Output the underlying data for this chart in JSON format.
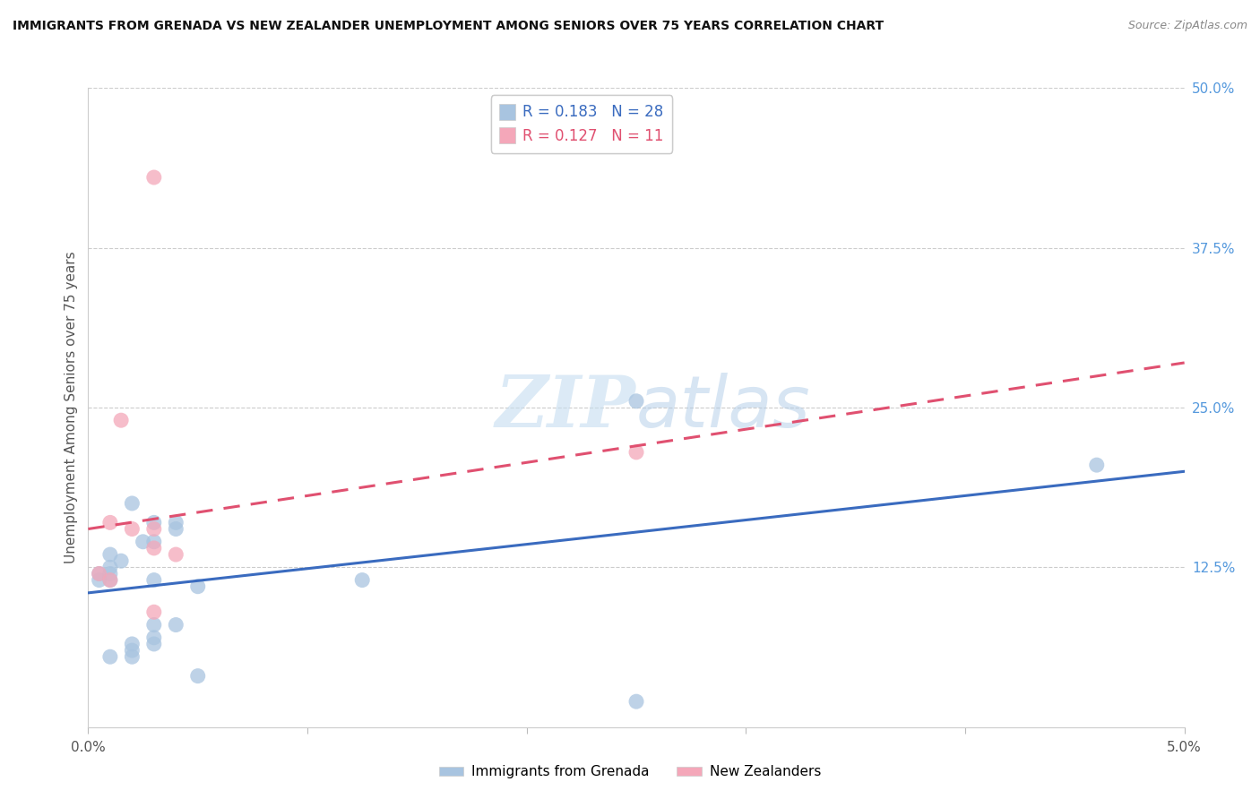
{
  "title": "IMMIGRANTS FROM GRENADA VS NEW ZEALANDER UNEMPLOYMENT AMONG SENIORS OVER 75 YEARS CORRELATION CHART",
  "source": "Source: ZipAtlas.com",
  "ylabel": "Unemployment Among Seniors over 75 years",
  "xlim": [
    0.0,
    0.05
  ],
  "ylim": [
    0.0,
    0.5
  ],
  "xticks": [
    0.0,
    0.01,
    0.02,
    0.03,
    0.04,
    0.05
  ],
  "yticks": [
    0.0,
    0.125,
    0.25,
    0.375,
    0.5
  ],
  "ytick_labels": [
    "",
    "12.5%",
    "25.0%",
    "37.5%",
    "50.0%"
  ],
  "xtick_labels": [
    "0.0%",
    "",
    "",
    "",
    "",
    "5.0%"
  ],
  "legend_labels": [
    "Immigrants from Grenada",
    "New Zealanders"
  ],
  "r_blue": 0.183,
  "n_blue": 28,
  "r_pink": 0.127,
  "n_pink": 11,
  "blue_color": "#a8c4e0",
  "pink_color": "#f4a7b9",
  "line_blue": "#3a6bbf",
  "line_pink": "#e05070",
  "watermark_zip": "ZIP",
  "watermark_atlas": "atlas",
  "blue_scatter_x": [
    0.0005,
    0.0005,
    0.001,
    0.001,
    0.001,
    0.001,
    0.001,
    0.0015,
    0.002,
    0.002,
    0.002,
    0.002,
    0.0025,
    0.003,
    0.003,
    0.003,
    0.003,
    0.003,
    0.003,
    0.004,
    0.004,
    0.004,
    0.005,
    0.005,
    0.0125,
    0.025,
    0.046,
    0.025
  ],
  "blue_scatter_y": [
    0.115,
    0.12,
    0.115,
    0.12,
    0.125,
    0.135,
    0.055,
    0.13,
    0.055,
    0.06,
    0.065,
    0.175,
    0.145,
    0.065,
    0.07,
    0.08,
    0.16,
    0.145,
    0.115,
    0.16,
    0.155,
    0.08,
    0.04,
    0.11,
    0.115,
    0.255,
    0.205,
    0.02
  ],
  "pink_scatter_x": [
    0.0005,
    0.001,
    0.001,
    0.0015,
    0.002,
    0.003,
    0.003,
    0.003,
    0.004,
    0.003,
    0.025
  ],
  "pink_scatter_y": [
    0.12,
    0.115,
    0.16,
    0.24,
    0.155,
    0.155,
    0.14,
    0.09,
    0.135,
    0.43,
    0.215
  ],
  "blue_line_x": [
    0.0,
    0.05
  ],
  "blue_line_y": [
    0.105,
    0.2
  ],
  "pink_line_x": [
    0.0,
    0.05
  ],
  "pink_line_y": [
    0.155,
    0.285
  ]
}
